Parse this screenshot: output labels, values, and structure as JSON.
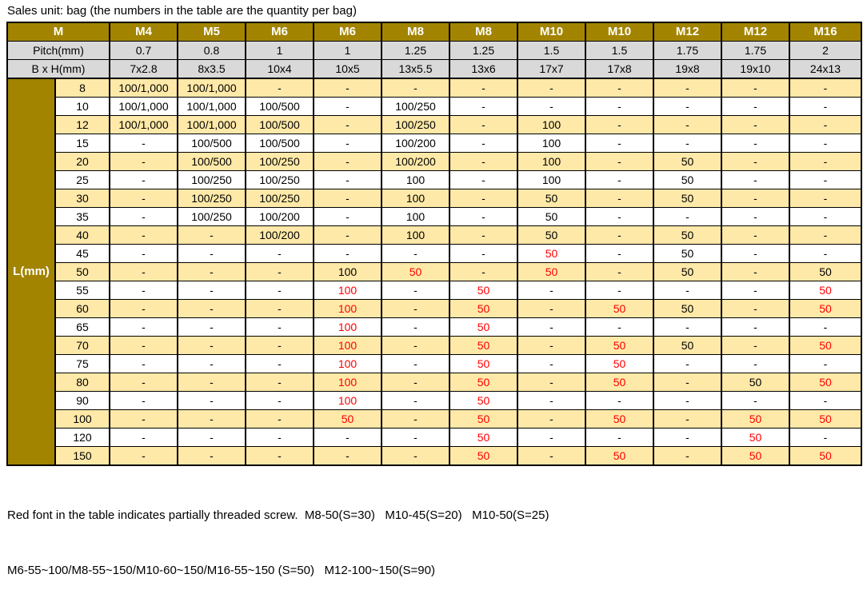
{
  "title": "Sales unit: bag (the numbers in the table are the quantity per bag)",
  "table": {
    "corner_label": "M",
    "pitch_label": "Pitch(mm)",
    "bxh_label": "B x H(mm)",
    "l_axis_label": "L(mm)",
    "columns": [
      {
        "m": "M4",
        "pitch": "0.7",
        "bxh": "7x2.8"
      },
      {
        "m": "M5",
        "pitch": "0.8",
        "bxh": "8x3.5"
      },
      {
        "m": "M6",
        "pitch": "1",
        "bxh": "10x4"
      },
      {
        "m": "M6",
        "pitch": "1",
        "bxh": "10x5"
      },
      {
        "m": "M8",
        "pitch": "1.25",
        "bxh": "13x5.5"
      },
      {
        "m": "M8",
        "pitch": "1.25",
        "bxh": "13x6"
      },
      {
        "m": "M10",
        "pitch": "1.5",
        "bxh": "17x7"
      },
      {
        "m": "M10",
        "pitch": "1.5",
        "bxh": "17x8"
      },
      {
        "m": "M12",
        "pitch": "1.75",
        "bxh": "19x8"
      },
      {
        "m": "M12",
        "pitch": "1.75",
        "bxh": "19x10"
      },
      {
        "m": "M16",
        "pitch": "2",
        "bxh": "24x13"
      }
    ],
    "rows": [
      {
        "l": "8",
        "cells": [
          {
            "v": "100/1,000"
          },
          {
            "v": "100/1,000"
          },
          {
            "v": "-"
          },
          {
            "v": "-"
          },
          {
            "v": "-"
          },
          {
            "v": "-"
          },
          {
            "v": "-"
          },
          {
            "v": "-"
          },
          {
            "v": "-"
          },
          {
            "v": "-"
          },
          {
            "v": "-"
          }
        ]
      },
      {
        "l": "10",
        "cells": [
          {
            "v": "100/1,000"
          },
          {
            "v": "100/1,000"
          },
          {
            "v": "100/500"
          },
          {
            "v": "-"
          },
          {
            "v": "100/250"
          },
          {
            "v": "-"
          },
          {
            "v": "-"
          },
          {
            "v": "-"
          },
          {
            "v": "-"
          },
          {
            "v": "-"
          },
          {
            "v": "-"
          }
        ]
      },
      {
        "l": "12",
        "cells": [
          {
            "v": "100/1,000"
          },
          {
            "v": "100/1,000"
          },
          {
            "v": "100/500"
          },
          {
            "v": "-"
          },
          {
            "v": "100/250"
          },
          {
            "v": "-"
          },
          {
            "v": "100"
          },
          {
            "v": "-"
          },
          {
            "v": "-"
          },
          {
            "v": "-"
          },
          {
            "v": "-"
          }
        ]
      },
      {
        "l": "15",
        "cells": [
          {
            "v": "-"
          },
          {
            "v": "100/500"
          },
          {
            "v": "100/500"
          },
          {
            "v": "-"
          },
          {
            "v": "100/200"
          },
          {
            "v": "-"
          },
          {
            "v": "100"
          },
          {
            "v": "-"
          },
          {
            "v": "-"
          },
          {
            "v": "-"
          },
          {
            "v": "-"
          }
        ]
      },
      {
        "l": "20",
        "cells": [
          {
            "v": "-"
          },
          {
            "v": "100/500"
          },
          {
            "v": "100/250"
          },
          {
            "v": "-"
          },
          {
            "v": "100/200"
          },
          {
            "v": "-"
          },
          {
            "v": "100"
          },
          {
            "v": "-"
          },
          {
            "v": "50"
          },
          {
            "v": "-"
          },
          {
            "v": "-"
          }
        ]
      },
      {
        "l": "25",
        "cells": [
          {
            "v": "-"
          },
          {
            "v": "100/250"
          },
          {
            "v": "100/250"
          },
          {
            "v": "-"
          },
          {
            "v": "100"
          },
          {
            "v": "-"
          },
          {
            "v": "100"
          },
          {
            "v": "-"
          },
          {
            "v": "50"
          },
          {
            "v": "-"
          },
          {
            "v": "-"
          }
        ]
      },
      {
        "l": "30",
        "cells": [
          {
            "v": "-"
          },
          {
            "v": "100/250"
          },
          {
            "v": "100/250"
          },
          {
            "v": "-"
          },
          {
            "v": "100"
          },
          {
            "v": "-"
          },
          {
            "v": "50"
          },
          {
            "v": "-"
          },
          {
            "v": "50"
          },
          {
            "v": "-"
          },
          {
            "v": "-"
          }
        ]
      },
      {
        "l": "35",
        "cells": [
          {
            "v": "-"
          },
          {
            "v": "100/250"
          },
          {
            "v": "100/200"
          },
          {
            "v": "-"
          },
          {
            "v": "100"
          },
          {
            "v": "-"
          },
          {
            "v": "50"
          },
          {
            "v": "-"
          },
          {
            "v": "-"
          },
          {
            "v": "-"
          },
          {
            "v": "-"
          }
        ]
      },
      {
        "l": "40",
        "cells": [
          {
            "v": "-"
          },
          {
            "v": "-"
          },
          {
            "v": "100/200"
          },
          {
            "v": "-"
          },
          {
            "v": "100"
          },
          {
            "v": "-"
          },
          {
            "v": "50"
          },
          {
            "v": "-"
          },
          {
            "v": "50"
          },
          {
            "v": "-"
          },
          {
            "v": "-"
          }
        ]
      },
      {
        "l": "45",
        "cells": [
          {
            "v": "-"
          },
          {
            "v": "-"
          },
          {
            "v": "-"
          },
          {
            "v": "-"
          },
          {
            "v": "-"
          },
          {
            "v": "-"
          },
          {
            "v": "50",
            "red": true
          },
          {
            "v": "-"
          },
          {
            "v": "50"
          },
          {
            "v": "-"
          },
          {
            "v": "-"
          }
        ]
      },
      {
        "l": "50",
        "cells": [
          {
            "v": "-"
          },
          {
            "v": "-"
          },
          {
            "v": "-"
          },
          {
            "v": "100"
          },
          {
            "v": "50",
            "red": true
          },
          {
            "v": "-"
          },
          {
            "v": "50",
            "red": true
          },
          {
            "v": "-"
          },
          {
            "v": "50"
          },
          {
            "v": "-"
          },
          {
            "v": "50"
          }
        ]
      },
      {
        "l": "55",
        "cells": [
          {
            "v": "-"
          },
          {
            "v": "-"
          },
          {
            "v": "-"
          },
          {
            "v": "100",
            "red": true
          },
          {
            "v": "-"
          },
          {
            "v": "50",
            "red": true
          },
          {
            "v": "-"
          },
          {
            "v": "-"
          },
          {
            "v": "-"
          },
          {
            "v": "-"
          },
          {
            "v": "50",
            "red": true
          }
        ]
      },
      {
        "l": "60",
        "cells": [
          {
            "v": "-"
          },
          {
            "v": "-"
          },
          {
            "v": "-"
          },
          {
            "v": "100",
            "red": true
          },
          {
            "v": "-"
          },
          {
            "v": "50",
            "red": true
          },
          {
            "v": "-"
          },
          {
            "v": "50",
            "red": true
          },
          {
            "v": "50"
          },
          {
            "v": "-"
          },
          {
            "v": "50",
            "red": true
          }
        ]
      },
      {
        "l": "65",
        "cells": [
          {
            "v": "-"
          },
          {
            "v": "-"
          },
          {
            "v": "-"
          },
          {
            "v": "100",
            "red": true
          },
          {
            "v": "-"
          },
          {
            "v": "50",
            "red": true
          },
          {
            "v": "-"
          },
          {
            "v": "-"
          },
          {
            "v": "-"
          },
          {
            "v": "-"
          },
          {
            "v": "-"
          }
        ]
      },
      {
        "l": "70",
        "cells": [
          {
            "v": "-"
          },
          {
            "v": "-"
          },
          {
            "v": "-"
          },
          {
            "v": "100",
            "red": true
          },
          {
            "v": "-"
          },
          {
            "v": "50",
            "red": true
          },
          {
            "v": "-"
          },
          {
            "v": "50",
            "red": true
          },
          {
            "v": "50"
          },
          {
            "v": "-"
          },
          {
            "v": "50",
            "red": true
          }
        ]
      },
      {
        "l": "75",
        "cells": [
          {
            "v": "-"
          },
          {
            "v": "-"
          },
          {
            "v": "-"
          },
          {
            "v": "100",
            "red": true
          },
          {
            "v": "-"
          },
          {
            "v": "50",
            "red": true
          },
          {
            "v": "-"
          },
          {
            "v": "50",
            "red": true
          },
          {
            "v": "-"
          },
          {
            "v": "-"
          },
          {
            "v": "-"
          }
        ]
      },
      {
        "l": "80",
        "cells": [
          {
            "v": "-"
          },
          {
            "v": "-"
          },
          {
            "v": "-"
          },
          {
            "v": "100",
            "red": true
          },
          {
            "v": "-"
          },
          {
            "v": "50",
            "red": true
          },
          {
            "v": "-"
          },
          {
            "v": "50",
            "red": true
          },
          {
            "v": "-"
          },
          {
            "v": "50"
          },
          {
            "v": "50",
            "red": true
          }
        ]
      },
      {
        "l": "90",
        "cells": [
          {
            "v": "-"
          },
          {
            "v": "-"
          },
          {
            "v": "-"
          },
          {
            "v": "100",
            "red": true
          },
          {
            "v": "-"
          },
          {
            "v": "50",
            "red": true
          },
          {
            "v": "-"
          },
          {
            "v": "-"
          },
          {
            "v": "-"
          },
          {
            "v": "-"
          },
          {
            "v": "-"
          }
        ]
      },
      {
        "l": "100",
        "cells": [
          {
            "v": "-"
          },
          {
            "v": "-"
          },
          {
            "v": "-"
          },
          {
            "v": "50",
            "red": true
          },
          {
            "v": "-"
          },
          {
            "v": "50",
            "red": true
          },
          {
            "v": "-"
          },
          {
            "v": "50",
            "red": true
          },
          {
            "v": "-"
          },
          {
            "v": "50",
            "red": true
          },
          {
            "v": "50",
            "red": true
          }
        ]
      },
      {
        "l": "120",
        "cells": [
          {
            "v": "-"
          },
          {
            "v": "-"
          },
          {
            "v": "-"
          },
          {
            "v": "-"
          },
          {
            "v": "-"
          },
          {
            "v": "50",
            "red": true
          },
          {
            "v": "-"
          },
          {
            "v": "-"
          },
          {
            "v": "-"
          },
          {
            "v": "50",
            "red": true
          },
          {
            "v": "-"
          }
        ]
      },
      {
        "l": "150",
        "cells": [
          {
            "v": "-"
          },
          {
            "v": "-"
          },
          {
            "v": "-"
          },
          {
            "v": "-"
          },
          {
            "v": "-"
          },
          {
            "v": "50",
            "red": true
          },
          {
            "v": "-"
          },
          {
            "v": "50",
            "red": true
          },
          {
            "v": "-"
          },
          {
            "v": "50",
            "red": true
          },
          {
            "v": "50",
            "red": true
          }
        ]
      }
    ]
  },
  "footer": {
    "line1": "Red font in the table indicates partially threaded screw.  M8-50(S=30)   M10-45(S=20)   M10-50(S=25)",
    "line2": "M6-55~100/M8-55~150/M10-60~150/M16-55~150 (S=50)   M12-100~150(S=90)"
  },
  "colors": {
    "gold": "#A28400",
    "cream": "#FFE9A8",
    "gray": "#D9D9D9",
    "red": "#FF0000"
  }
}
